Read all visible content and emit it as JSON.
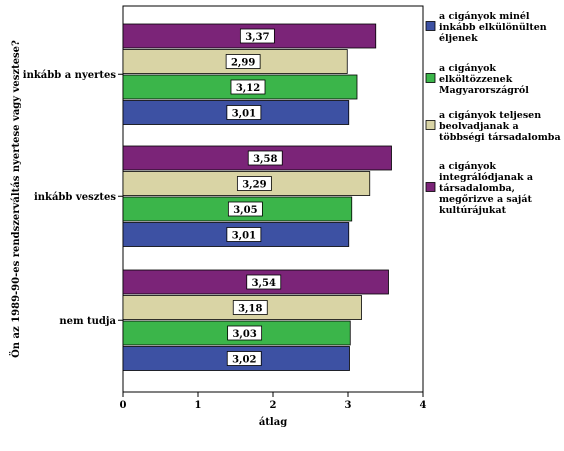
{
  "chart_data": {
    "type": "bar",
    "orientation": "horizontal",
    "ylabel": "Ön az 1989-90-es rendszerváltás nyertese vagy vesztese?",
    "xlabel": "átlag",
    "xlim": [
      0,
      4.0
    ],
    "xticks": [
      "0",
      "1",
      "2",
      "3",
      "4"
    ],
    "categories": [
      "inkább a nyertes",
      "inkább vesztes",
      "nem tudja"
    ],
    "series": [
      {
        "name": [
          "a cigányok minél",
          "inkább elkülönülten",
          "éljenek"
        ],
        "color": "#3d51a3",
        "values": [
          3.01,
          3.01,
          3.02
        ],
        "labels": [
          "3,01",
          "3,01",
          "3,02"
        ]
      },
      {
        "name": [
          "a cigányok",
          "elköltözzenek",
          "Magyarországról"
        ],
        "color": "#3bb54a",
        "values": [
          3.12,
          3.05,
          3.03
        ],
        "labels": [
          "3,12",
          "3,05",
          "3,03"
        ]
      },
      {
        "name": [
          "a cigányok teljesen",
          "beolvadjanak a",
          "többségi társadalomba"
        ],
        "color": "#d9d4a5",
        "values": [
          2.99,
          3.29,
          3.18
        ],
        "labels": [
          "2,99",
          "3,29",
          "3,18"
        ]
      },
      {
        "name": [
          "a cigányok",
          "integrálódjanak a",
          "társadalomba,",
          "megőrizve a saját",
          "kultúrájukat"
        ],
        "color": "#7b2478",
        "values": [
          3.37,
          3.58,
          3.54
        ],
        "labels": [
          "3,37",
          "3,58",
          "3,54"
        ]
      }
    ],
    "grid": false,
    "legend_position": "right"
  }
}
